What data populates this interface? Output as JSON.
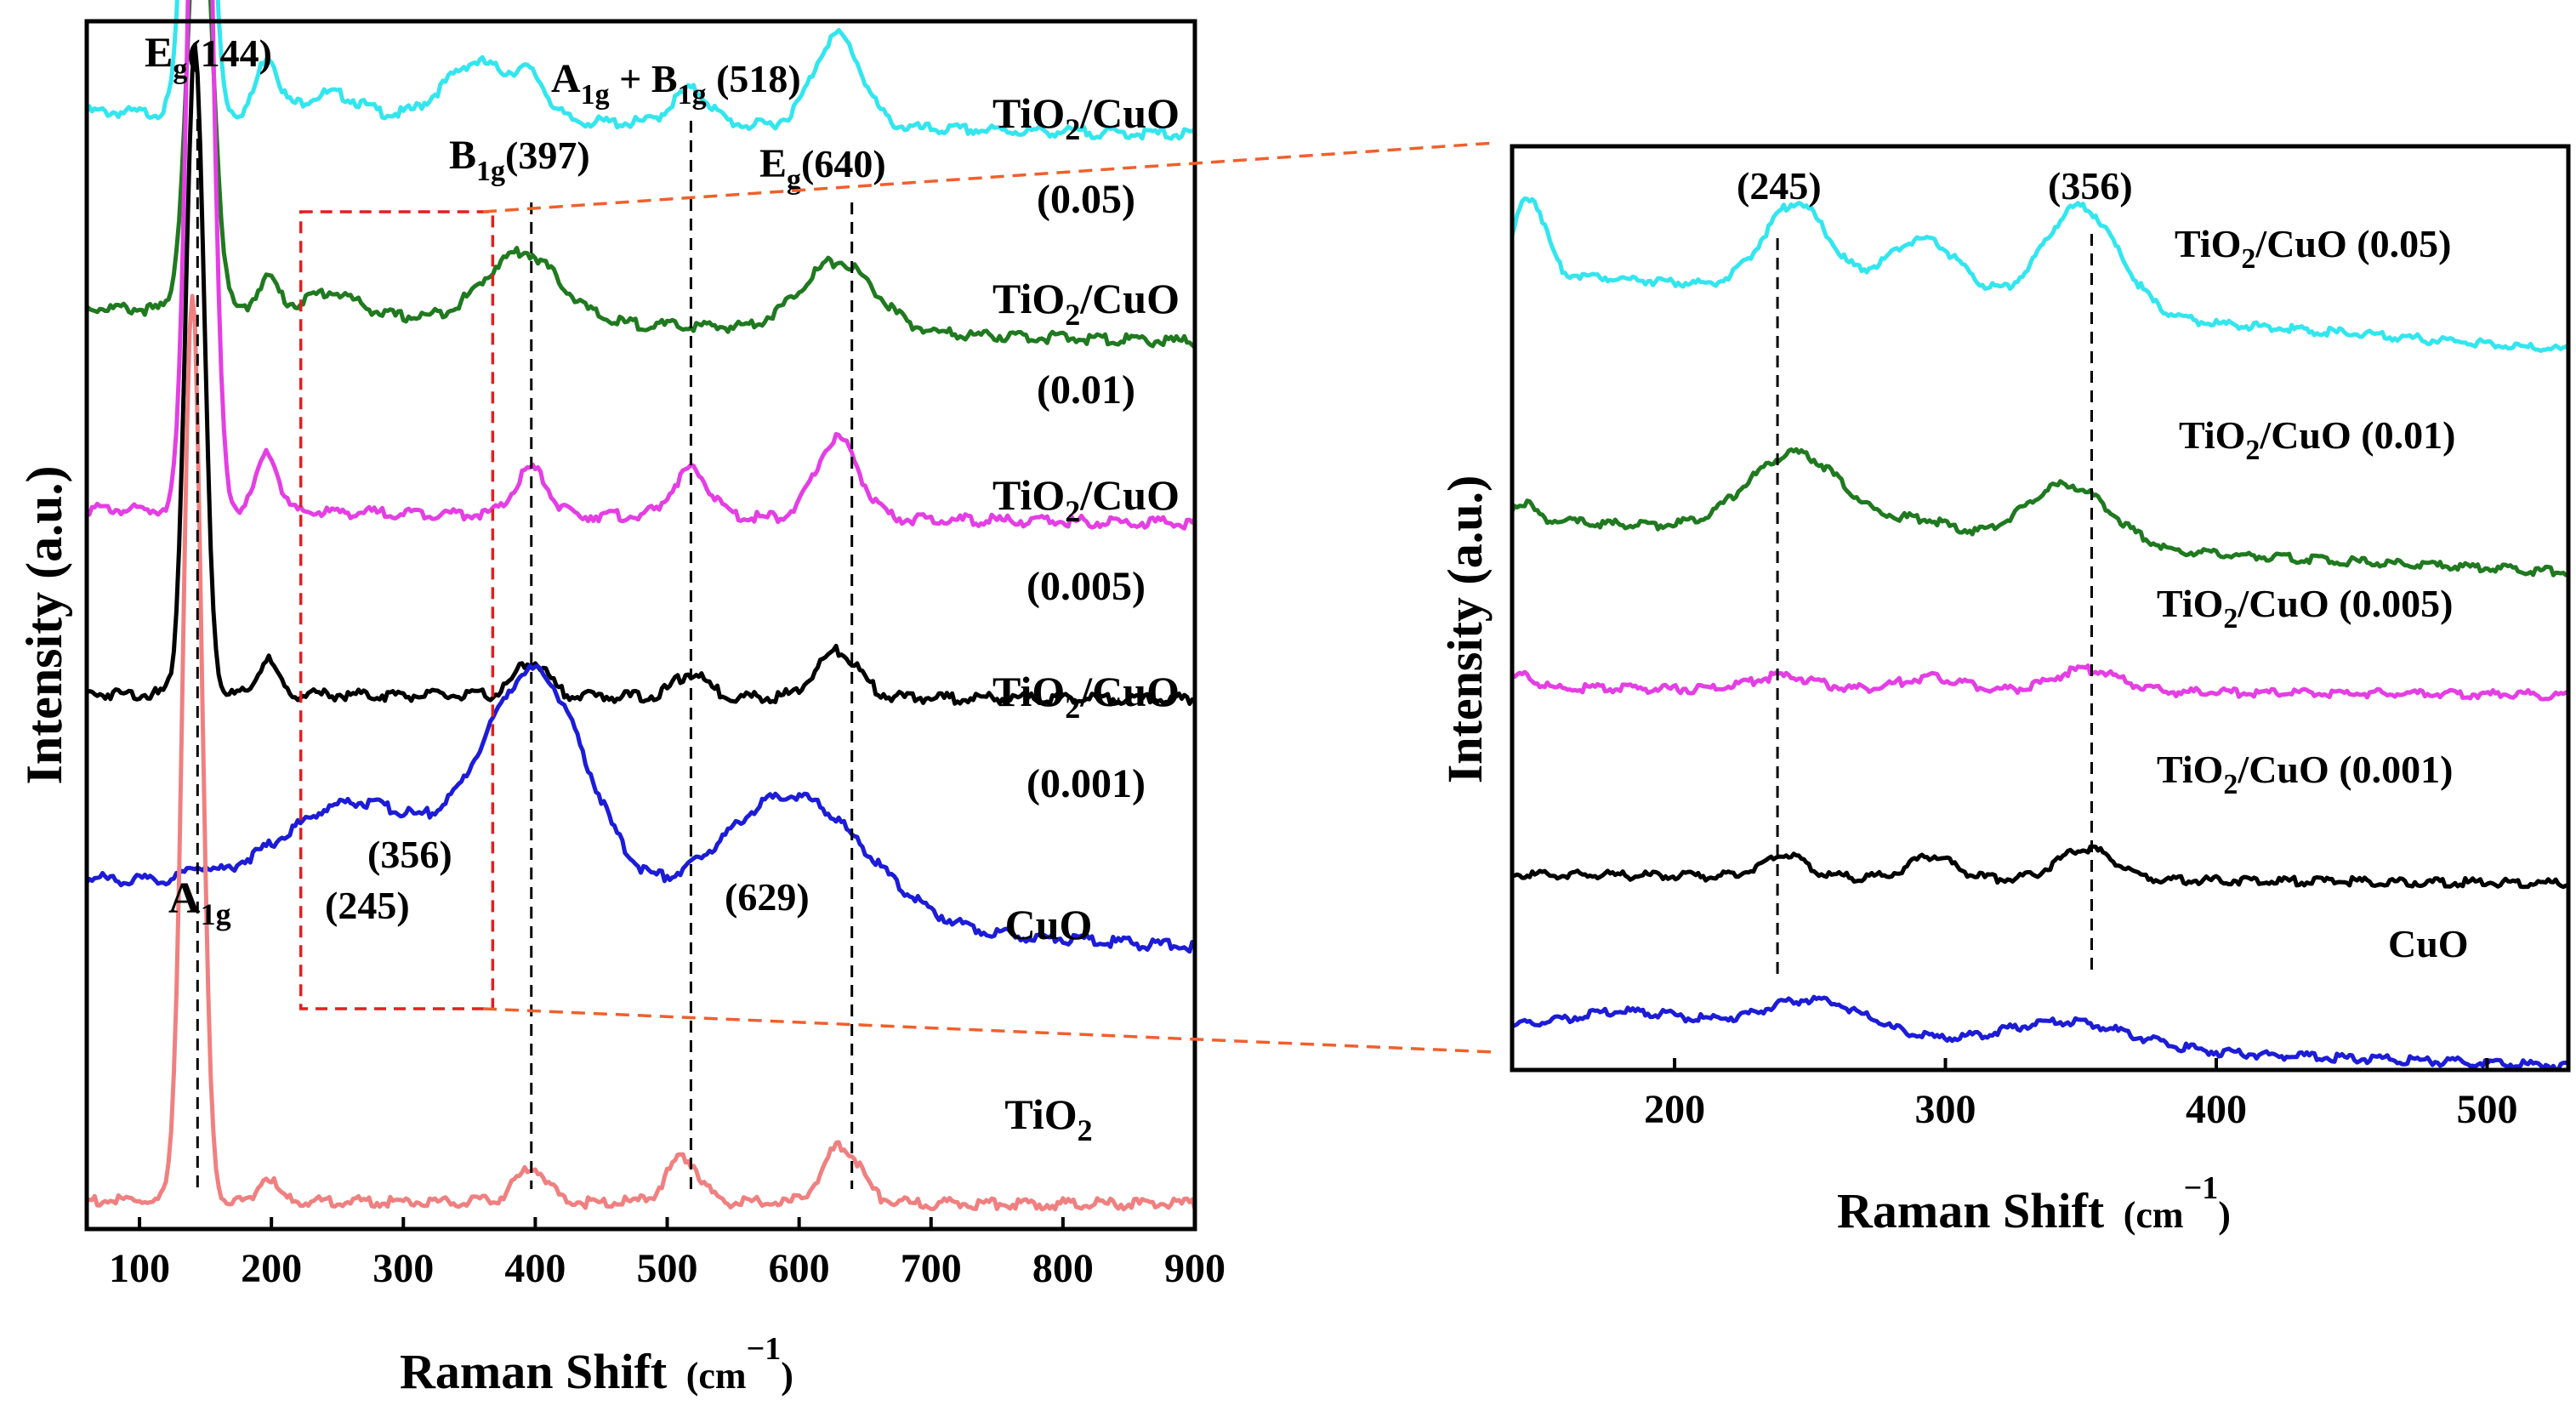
{
  "chart_data": [
    {
      "id": "left",
      "type": "line",
      "xlabel": "Raman Shift",
      "xunit": "cm",
      "xunit_exp": "−1",
      "ylabel": "Intensity (a.u.)",
      "xlim": [
        60,
        900
      ],
      "xticks": [
        100,
        200,
        300,
        400,
        500,
        600,
        700,
        800,
        900
      ],
      "series": [
        {
          "name": "TiO2/CuO (0.05)",
          "label_main": "TiO",
          "label_sub": "2",
          "label_tail": "/CuO",
          "label_line2": "(0.05)",
          "color": "#33e6ee",
          "baseline": 95,
          "base_slope": -2,
          "peaks": [
            [
              144,
              62,
              8
            ],
            [
              197,
              5,
              8
            ],
            [
              245,
              2,
              22
            ],
            [
              356,
              5,
              25
            ],
            [
              397,
              3,
              12
            ],
            [
              518,
              3,
              14
            ],
            [
              629,
              8,
              18
            ]
          ]
        },
        {
          "name": "TiO2/CuO (0.01)",
          "label_main": "TiO",
          "label_sub": "2",
          "label_tail": "/CuO",
          "label_line2": "(0.01)",
          "color": "#1f7a1f",
          "baseline": 78,
          "base_slope": -3,
          "peaks": [
            [
              146,
              40,
              9
            ],
            [
              197,
              3,
              8
            ],
            [
              245,
              2,
              20
            ],
            [
              390,
              6,
              28
            ],
            [
              629,
              6,
              28
            ]
          ]
        },
        {
          "name": "TiO2/CuO (0.005)",
          "label_main": "TiO",
          "label_sub": "2",
          "label_tail": "/CuO",
          "label_line2": "(0.005)",
          "color": "#e43ee4",
          "baseline": 60.5,
          "base_slope": -1.2,
          "peaks": [
            [
              146,
              87,
              8
            ],
            [
              197,
              5,
              8
            ],
            [
              397,
              4,
              12
            ],
            [
              518,
              4,
              14
            ],
            [
              629,
              7,
              16
            ]
          ]
        },
        {
          "name": "TiO2/CuO (0.001)",
          "label_main": "TiO",
          "label_sub": "2",
          "label_tail": "/CuO",
          "label_line2": "(0.001)",
          "color": "#000000",
          "baseline": 44.5,
          "base_slope": -0.5,
          "peaks": [
            [
              142,
              56,
              7
            ],
            [
              197,
              3,
              7
            ],
            [
              397,
              3,
              12
            ],
            [
              518,
              2,
              12
            ],
            [
              629,
              4,
              16
            ]
          ]
        },
        {
          "name": "CuO",
          "label_main": "CuO",
          "color": "#1c1cd8",
          "baseline": 28.5,
          "base_slope": -6,
          "peaks": [
            [
              144,
              1,
              8
            ],
            [
              265,
              8,
              55
            ],
            [
              400,
              20,
              40
            ],
            [
              595,
              11,
              55
            ]
          ]
        },
        {
          "name": "TiO2",
          "label_main": "TiO",
          "label_sub": "2",
          "color": "#f08080",
          "baseline": 0.5,
          "base_slope": -0.3,
          "peaks": [
            [
              140,
              79,
              7
            ],
            [
              197,
              2,
              7
            ],
            [
              397,
              3,
              12
            ],
            [
              512,
              4,
              12
            ],
            [
              632,
              5,
              14
            ]
          ]
        }
      ],
      "vlines": [
        144,
        397,
        518,
        640
      ],
      "annotations": [
        {
          "main": "E",
          "sub": "g",
          "tail": "(144)"
        },
        {
          "main": "B",
          "sub": "1g",
          "tail": "(397)"
        },
        {
          "main": "A",
          "sub": "1g",
          "tail": " + B",
          "sub2": "1g",
          "tail2": " (518)"
        },
        {
          "main": "E",
          "sub": "g",
          "tail": "(640)"
        },
        {
          "main": "A",
          "sub": "1g"
        },
        {
          "main": "(356)"
        },
        {
          "main": "(245)"
        },
        {
          "main": "(629)"
        }
      ],
      "zoom_box_x": [
        230,
        360
      ]
    },
    {
      "id": "right",
      "type": "line",
      "xlabel": "Raman Shift",
      "xunit": "cm",
      "xunit_exp": "−1",
      "ylabel": "Intensity (a.u.)",
      "xlim": [
        140,
        530
      ],
      "xticks": [
        200,
        300,
        400,
        500
      ],
      "series": [
        {
          "name": "TiO2/CuO (0.05)",
          "label_main": "TiO",
          "label_sub": "2",
          "label_tail": "/CuO (0.05)",
          "color": "#33e6ee",
          "baseline": 89,
          "base_slope": -9,
          "peaks": [
            [
              144,
              6,
              4
            ],
            [
              150,
              5,
              4
            ],
            [
              245,
              10,
              12
            ],
            [
              292,
              7,
              14
            ],
            [
              350,
              12,
              14
            ]
          ]
        },
        {
          "name": "TiO2/CuO (0.01)",
          "label_main": "TiO",
          "label_sub": "2",
          "label_tail": "/CuO (0.01)",
          "color": "#1f7a1f",
          "baseline": 61,
          "base_slope": -6,
          "peaks": [
            [
              144,
              2,
              4
            ],
            [
              245,
              9,
              18
            ],
            [
              292,
              2,
              12
            ],
            [
              345,
              7,
              16
            ]
          ]
        },
        {
          "name": "TiO2/CuO (0.005)",
          "label_main": "TiO",
          "label_sub": "2",
          "label_tail": "/CuO (0.005)",
          "color": "#e43ee4",
          "baseline": 42,
          "base_slope": -0.8,
          "peaks": [
            [
              144,
              1.5,
              4
            ],
            [
              240,
              1.5,
              12
            ],
            [
              295,
              1.5,
              12
            ],
            [
              352,
              2.5,
              12
            ]
          ]
        },
        {
          "name": "TiO2/CuO (0.001)",
          "label_main": "TiO",
          "label_sub": "2",
          "label_tail": "/CuO (0.001)",
          "color": "#000000",
          "baseline": 21,
          "base_slope": -1,
          "peaks": [
            [
              240,
              2.5,
              8
            ],
            [
              295,
              2.5,
              8
            ],
            [
              352,
              3.5,
              10
            ]
          ]
        },
        {
          "name": "CuO",
          "label_main": "CuO",
          "color": "#1c1cd8",
          "baseline": 3.5,
          "base_slope": -4,
          "peaks": [
            [
              185,
              2.5,
              25
            ],
            [
              252,
              4.5,
              20
            ],
            [
              345,
              3,
              24
            ]
          ]
        }
      ],
      "vlines": [
        238,
        354
      ],
      "annotations": [
        {
          "main": "(245)"
        },
        {
          "main": "(356)"
        }
      ]
    }
  ],
  "zoom_link_color": "#f0602c",
  "zoom_box_color": "#e02020"
}
